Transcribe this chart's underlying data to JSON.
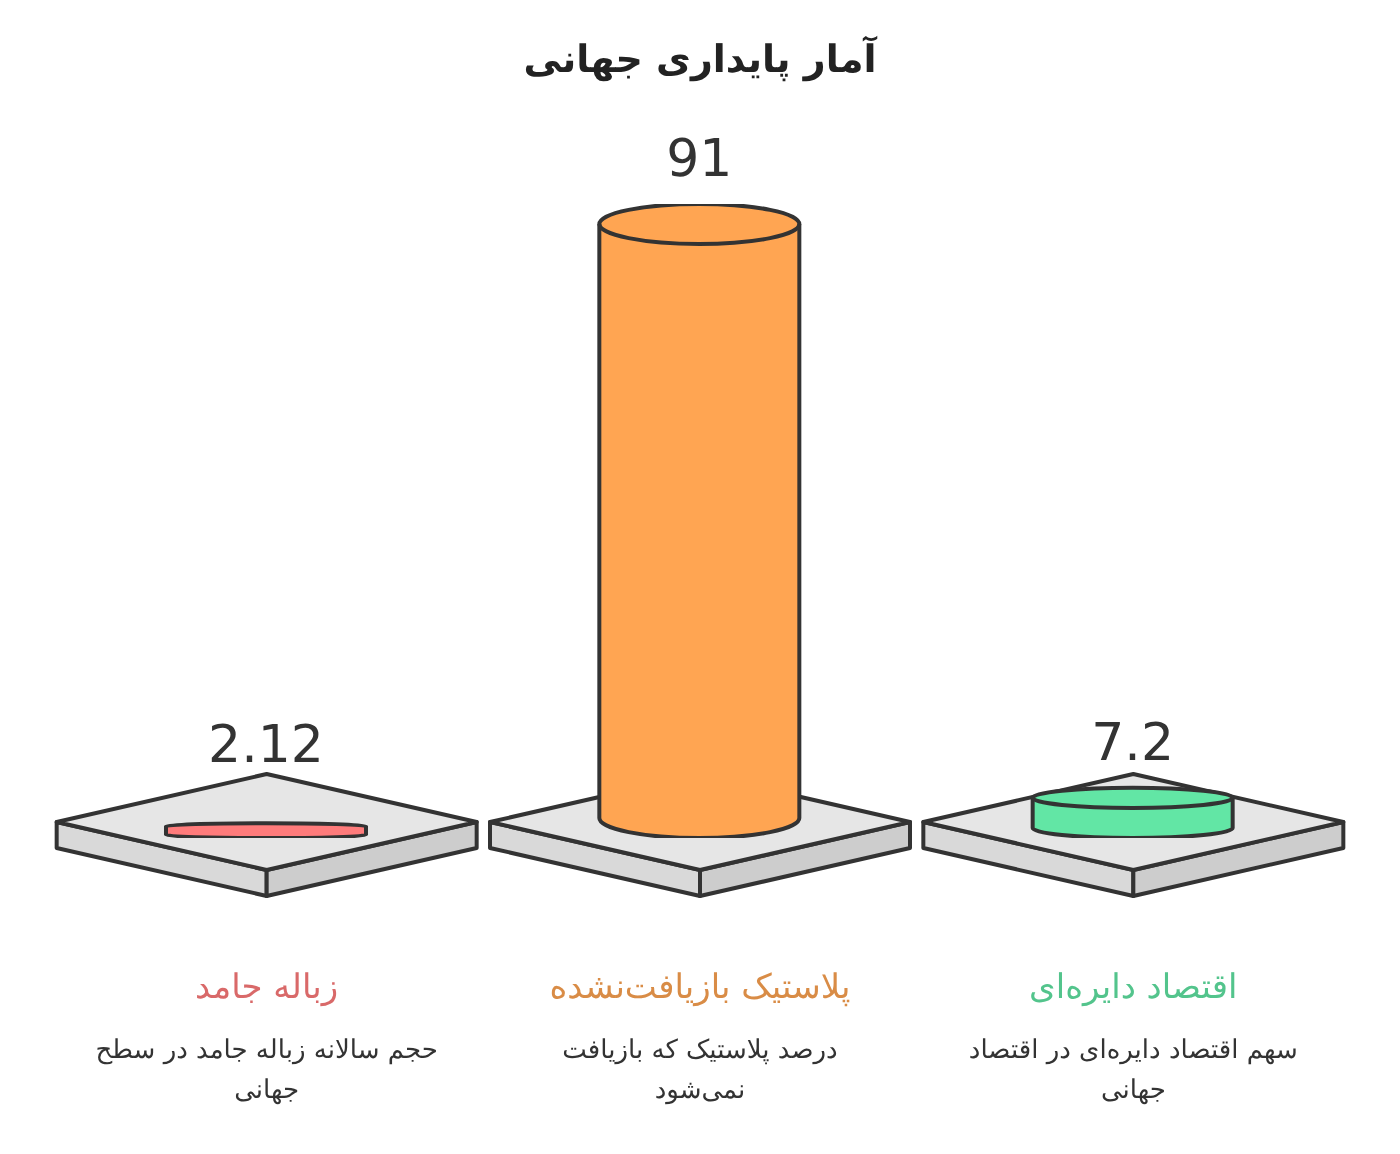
{
  "chart_data": {
    "type": "bar",
    "title": "آمار پایداری جهانی",
    "categories": [
      "زباله جامد",
      "پلاستیک بازیافت‌نشده",
      "اقتصاد دایره‌ای"
    ],
    "values": [
      2.12,
      91,
      7.2
    ],
    "colors": [
      "#ff7b7b",
      "#ffa552",
      "#62e6a5"
    ],
    "data_labels": true,
    "annotations": [
      "حجم سالانه زباله جامد در سطح جهانی",
      "درصد پلاستیک که بازیافت نمی‌شود",
      "سهم اقتصاد دایره‌ای در اقتصاد جهانی"
    ]
  }
}
